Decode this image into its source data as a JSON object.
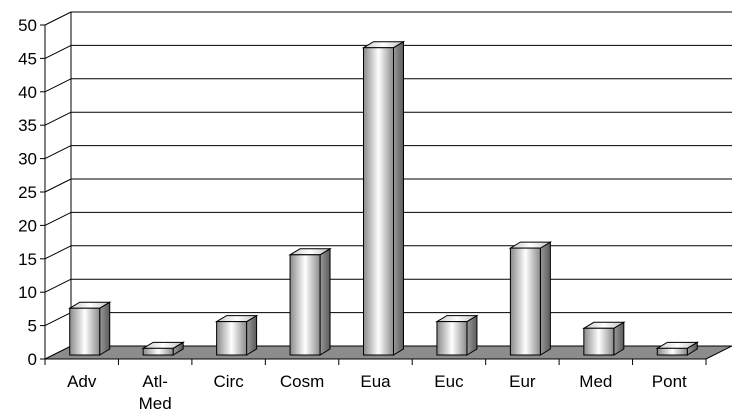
{
  "chart_data": {
    "type": "bar",
    "style": "3d-column",
    "title": "",
    "xlabel": "",
    "ylabel": "",
    "categories": [
      [
        "Adv"
      ],
      [
        "Atl-",
        "Med"
      ],
      [
        "Circ"
      ],
      [
        "Cosm"
      ],
      [
        "Eua"
      ],
      [
        "Euc"
      ],
      [
        "Eur"
      ],
      [
        "Med"
      ],
      [
        "Pont"
      ]
    ],
    "values": [
      7,
      1,
      5,
      15,
      46,
      5,
      16,
      4,
      1
    ],
    "ylim": [
      0,
      50
    ],
    "yticks": [
      "0",
      "5",
      "10",
      "15",
      "20",
      "25",
      "30",
      "35",
      "40",
      "45",
      "50"
    ],
    "grid": true,
    "legend": "none",
    "colors": {
      "bar": "#a9a9a9",
      "floor": "#8c8c8c",
      "grid": "#000000"
    }
  }
}
